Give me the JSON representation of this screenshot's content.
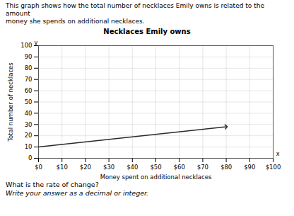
{
  "chart_data": {
    "type": "line",
    "title": "Necklaces Emily owns",
    "subtitle": [
      "This graph shows how the total number of necklaces Emily owns is related to the amount",
      "money she spends on additional necklaces."
    ],
    "caption": [
      "What is the rate of change?",
      "Write your answer as a decimal or integer."
    ],
    "xlabel": "Money spent on additional necklaces",
    "ylabel": "Total number of necklaces",
    "x": [
      0,
      80
    ],
    "values": [
      10,
      28
    ],
    "color": "#2a2a2a",
    "marker": "arrow",
    "xlim": [
      0,
      100
    ],
    "ylim": [
      0,
      100
    ],
    "xticks": [
      {
        "value": 0,
        "label": "$0"
      },
      {
        "value": 10,
        "label": "$10"
      },
      {
        "value": 20,
        "label": "$20"
      },
      {
        "value": 30,
        "label": "$30"
      },
      {
        "value": 40,
        "label": "$40"
      },
      {
        "value": 50,
        "label": "$50"
      },
      {
        "value": 60,
        "label": "$60"
      },
      {
        "value": 70,
        "label": "$70"
      },
      {
        "value": 80,
        "label": "$80"
      },
      {
        "value": 90,
        "label": "$90"
      },
      {
        "value": 100,
        "label": "$100"
      }
    ],
    "yticks": [
      0,
      10,
      20,
      30,
      40,
      50,
      60,
      70,
      80,
      90,
      100
    ],
    "grid": true,
    "annotations": [
      "x",
      "y"
    ]
  }
}
